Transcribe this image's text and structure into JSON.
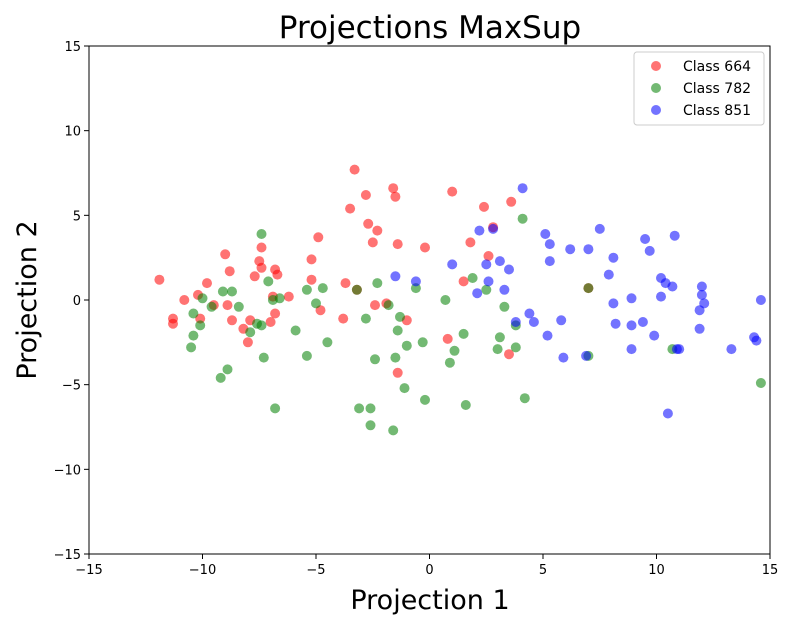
{
  "chart_data": {
    "type": "scatter",
    "title": "Projections MaxSup",
    "xlabel": "Projection 1",
    "ylabel": "Projection 2",
    "xlim": [
      -15,
      15
    ],
    "ylim": [
      -15,
      15
    ],
    "xticks": [
      "−15",
      "−10",
      "−5",
      "0",
      "5",
      "10",
      "15"
    ],
    "yticks": [
      "−15",
      "−10",
      "−5",
      "0",
      "5",
      "10",
      "15"
    ],
    "grid": false,
    "legend_position": "top-right",
    "series": [
      {
        "name": "Class 664",
        "color": "#ff0000",
        "points": [
          [
            -11.9,
            1.2
          ],
          [
            -11.3,
            -1.1
          ],
          [
            -11.3,
            -1.4
          ],
          [
            -10.8,
            0.0
          ],
          [
            -10.2,
            0.3
          ],
          [
            -10.1,
            -1.1
          ],
          [
            -9.8,
            1.0
          ],
          [
            -9.5,
            -0.3
          ],
          [
            -9.0,
            2.7
          ],
          [
            -8.9,
            -0.3
          ],
          [
            -8.8,
            1.7
          ],
          [
            -8.7,
            -1.2
          ],
          [
            -8.2,
            -1.7
          ],
          [
            -8.0,
            -2.5
          ],
          [
            -7.9,
            -1.2
          ],
          [
            -7.7,
            1.4
          ],
          [
            -7.5,
            2.3
          ],
          [
            -7.4,
            1.9
          ],
          [
            -7.4,
            3.1
          ],
          [
            -7.0,
            -1.3
          ],
          [
            -6.9,
            0.2
          ],
          [
            -6.8,
            1.8
          ],
          [
            -6.8,
            -0.8
          ],
          [
            -6.7,
            1.5
          ],
          [
            -6.2,
            0.2
          ],
          [
            -5.2,
            2.4
          ],
          [
            -5.2,
            1.2
          ],
          [
            -4.9,
            3.7
          ],
          [
            -4.8,
            -0.6
          ],
          [
            -3.8,
            -1.1
          ],
          [
            -3.7,
            1.0
          ],
          [
            -3.5,
            5.4
          ],
          [
            -3.3,
            7.7
          ],
          [
            -3.2,
            0.6
          ],
          [
            -2.8,
            6.2
          ],
          [
            -2.7,
            4.5
          ],
          [
            -2.5,
            3.4
          ],
          [
            -2.4,
            -0.3
          ],
          [
            -2.3,
            4.1
          ],
          [
            -1.9,
            -0.2
          ],
          [
            -1.6,
            6.6
          ],
          [
            -1.5,
            6.1
          ],
          [
            -1.4,
            3.3
          ],
          [
            -1.4,
            -4.3
          ],
          [
            -1.0,
            -1.2
          ],
          [
            -0.2,
            3.1
          ],
          [
            0.8,
            -2.3
          ],
          [
            1.0,
            6.4
          ],
          [
            1.5,
            1.1
          ],
          [
            1.8,
            3.4
          ],
          [
            2.4,
            5.5
          ],
          [
            2.6,
            2.6
          ],
          [
            2.8,
            4.3
          ],
          [
            3.5,
            -3.2
          ],
          [
            3.6,
            5.8
          ],
          [
            7.0,
            0.7
          ]
        ]
      },
      {
        "name": "Class 782",
        "color": "#008000",
        "points": [
          [
            -10.5,
            -2.8
          ],
          [
            -10.4,
            -0.8
          ],
          [
            -10.4,
            -2.1
          ],
          [
            -10.1,
            -1.5
          ],
          [
            -10.0,
            0.1
          ],
          [
            -9.6,
            -0.4
          ],
          [
            -9.2,
            -4.6
          ],
          [
            -9.1,
            0.5
          ],
          [
            -8.9,
            -4.1
          ],
          [
            -8.7,
            0.5
          ],
          [
            -8.4,
            -0.4
          ],
          [
            -7.9,
            -1.9
          ],
          [
            -7.6,
            -1.4
          ],
          [
            -7.4,
            3.9
          ],
          [
            -7.4,
            -1.5
          ],
          [
            -7.3,
            -3.4
          ],
          [
            -7.1,
            1.1
          ],
          [
            -6.8,
            -6.4
          ],
          [
            -6.9,
            0.0
          ],
          [
            -6.6,
            0.1
          ],
          [
            -5.9,
            -1.8
          ],
          [
            -5.4,
            -3.3
          ],
          [
            -5.4,
            0.6
          ],
          [
            -5.0,
            -0.2
          ],
          [
            -4.7,
            0.7
          ],
          [
            -4.5,
            -2.5
          ],
          [
            -3.2,
            0.6
          ],
          [
            -3.1,
            -6.4
          ],
          [
            -2.8,
            -1.1
          ],
          [
            -2.6,
            -6.4
          ],
          [
            -2.6,
            -7.4
          ],
          [
            -2.4,
            -3.5
          ],
          [
            -2.3,
            1.0
          ],
          [
            -1.8,
            -0.3
          ],
          [
            -1.6,
            -7.7
          ],
          [
            -1.5,
            -3.4
          ],
          [
            -1.4,
            -1.8
          ],
          [
            -1.3,
            -1.0
          ],
          [
            -1.1,
            -5.2
          ],
          [
            -1.0,
            -2.7
          ],
          [
            -0.6,
            0.7
          ],
          [
            -0.3,
            -2.5
          ],
          [
            -0.2,
            -5.9
          ],
          [
            0.7,
            0.0
          ],
          [
            0.9,
            -3.7
          ],
          [
            1.1,
            -3.0
          ],
          [
            1.5,
            -2.0
          ],
          [
            1.6,
            -6.2
          ],
          [
            1.9,
            1.3
          ],
          [
            2.5,
            0.6
          ],
          [
            3.0,
            -2.9
          ],
          [
            3.1,
            -2.2
          ],
          [
            3.3,
            -0.4
          ],
          [
            3.8,
            -2.8
          ],
          [
            3.8,
            -1.5
          ],
          [
            4.1,
            4.8
          ],
          [
            4.2,
            -5.8
          ],
          [
            7.0,
            -3.3
          ],
          [
            7.0,
            0.7
          ],
          [
            10.7,
            -2.9
          ],
          [
            14.6,
            -4.9
          ]
        ]
      },
      {
        "name": "Class 851",
        "color": "#0000ff",
        "points": [
          [
            -1.5,
            1.4
          ],
          [
            -0.6,
            1.1
          ],
          [
            1.0,
            2.1
          ],
          [
            2.1,
            0.4
          ],
          [
            2.2,
            4.1
          ],
          [
            2.5,
            2.1
          ],
          [
            2.6,
            1.1
          ],
          [
            2.8,
            4.2
          ],
          [
            3.1,
            2.3
          ],
          [
            3.3,
            0.6
          ],
          [
            3.5,
            1.8
          ],
          [
            3.8,
            -1.3
          ],
          [
            4.1,
            6.6
          ],
          [
            4.4,
            -0.8
          ],
          [
            4.6,
            -1.3
          ],
          [
            5.1,
            3.9
          ],
          [
            5.2,
            -2.1
          ],
          [
            5.3,
            2.3
          ],
          [
            5.3,
            3.3
          ],
          [
            5.8,
            -1.2
          ],
          [
            5.9,
            -3.4
          ],
          [
            6.2,
            3.0
          ],
          [
            6.9,
            -3.3
          ],
          [
            7.0,
            3.0
          ],
          [
            7.5,
            4.2
          ],
          [
            7.9,
            1.5
          ],
          [
            8.1,
            2.5
          ],
          [
            8.1,
            -0.2
          ],
          [
            8.2,
            -1.4
          ],
          [
            8.9,
            -1.5
          ],
          [
            8.9,
            -2.9
          ],
          [
            8.9,
            0.1
          ],
          [
            9.4,
            -1.3
          ],
          [
            9.5,
            3.6
          ],
          [
            9.7,
            2.9
          ],
          [
            9.9,
            -2.1
          ],
          [
            10.2,
            0.2
          ],
          [
            10.2,
            1.3
          ],
          [
            10.4,
            1.0
          ],
          [
            10.5,
            -6.7
          ],
          [
            10.7,
            0.8
          ],
          [
            10.8,
            3.8
          ],
          [
            10.9,
            -2.9
          ],
          [
            11.0,
            -2.9
          ],
          [
            11.9,
            -0.6
          ],
          [
            11.9,
            -1.7
          ],
          [
            12.0,
            0.8
          ],
          [
            12.0,
            0.3
          ],
          [
            12.1,
            -0.2
          ],
          [
            13.3,
            -2.9
          ],
          [
            14.3,
            -2.2
          ],
          [
            14.4,
            -2.4
          ],
          [
            14.6,
            0.0
          ]
        ]
      }
    ]
  }
}
